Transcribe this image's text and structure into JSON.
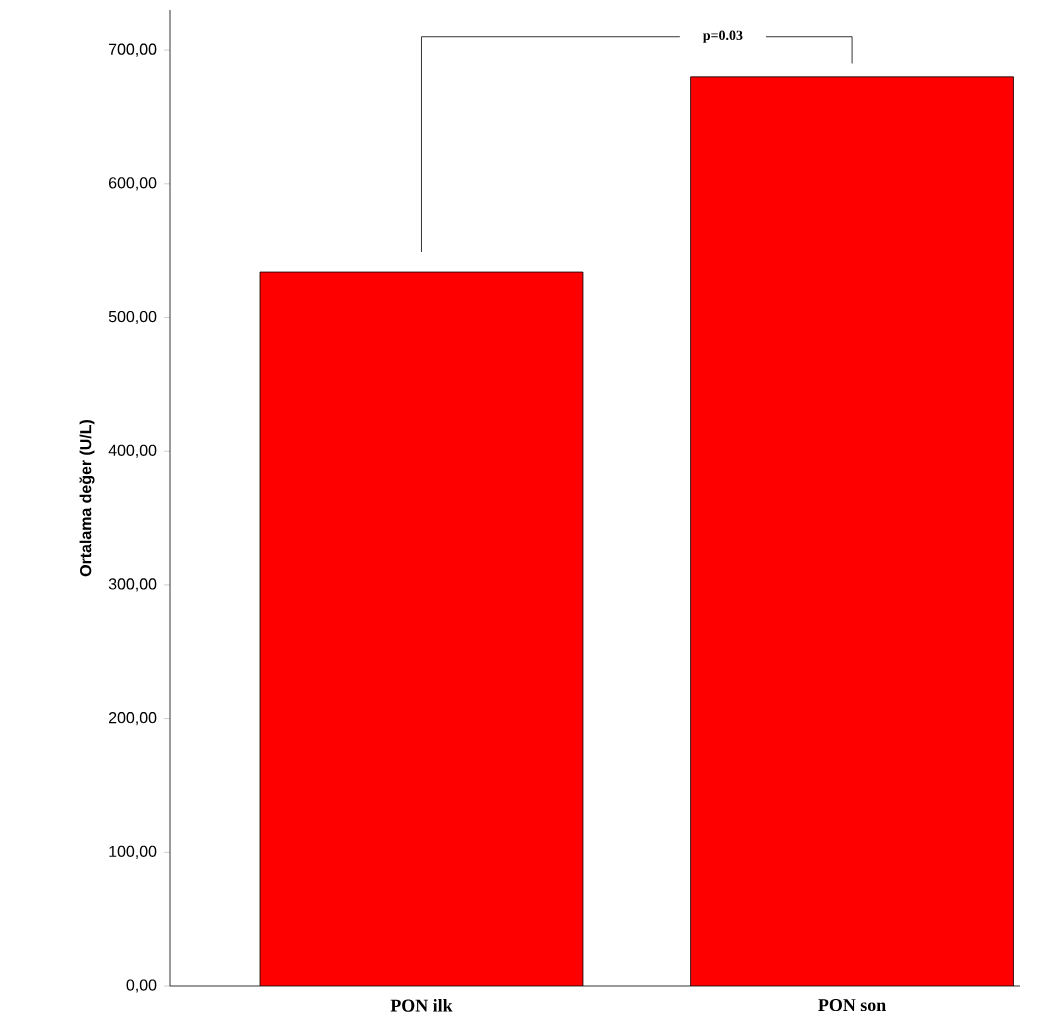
{
  "chart_data": {
    "type": "bar",
    "ylabel": "Ortalama değer (U/L)",
    "categories": [
      "PON ilk",
      "PON son"
    ],
    "values": [
      534,
      680
    ],
    "color": "#ff0000",
    "ylim": [
      0,
      730
    ],
    "yticks": [
      {
        "value": 0,
        "label": "0,00"
      },
      {
        "value": 100,
        "label": "100,00"
      },
      {
        "value": 200,
        "label": "200,00"
      },
      {
        "value": 300,
        "label": "300,00"
      },
      {
        "value": 400,
        "label": "400,00"
      },
      {
        "value": 500,
        "label": "500,00"
      },
      {
        "value": 600,
        "label": "600,00"
      },
      {
        "value": 700,
        "label": "700,00"
      }
    ],
    "annotations": [
      "p=0.03"
    ]
  }
}
